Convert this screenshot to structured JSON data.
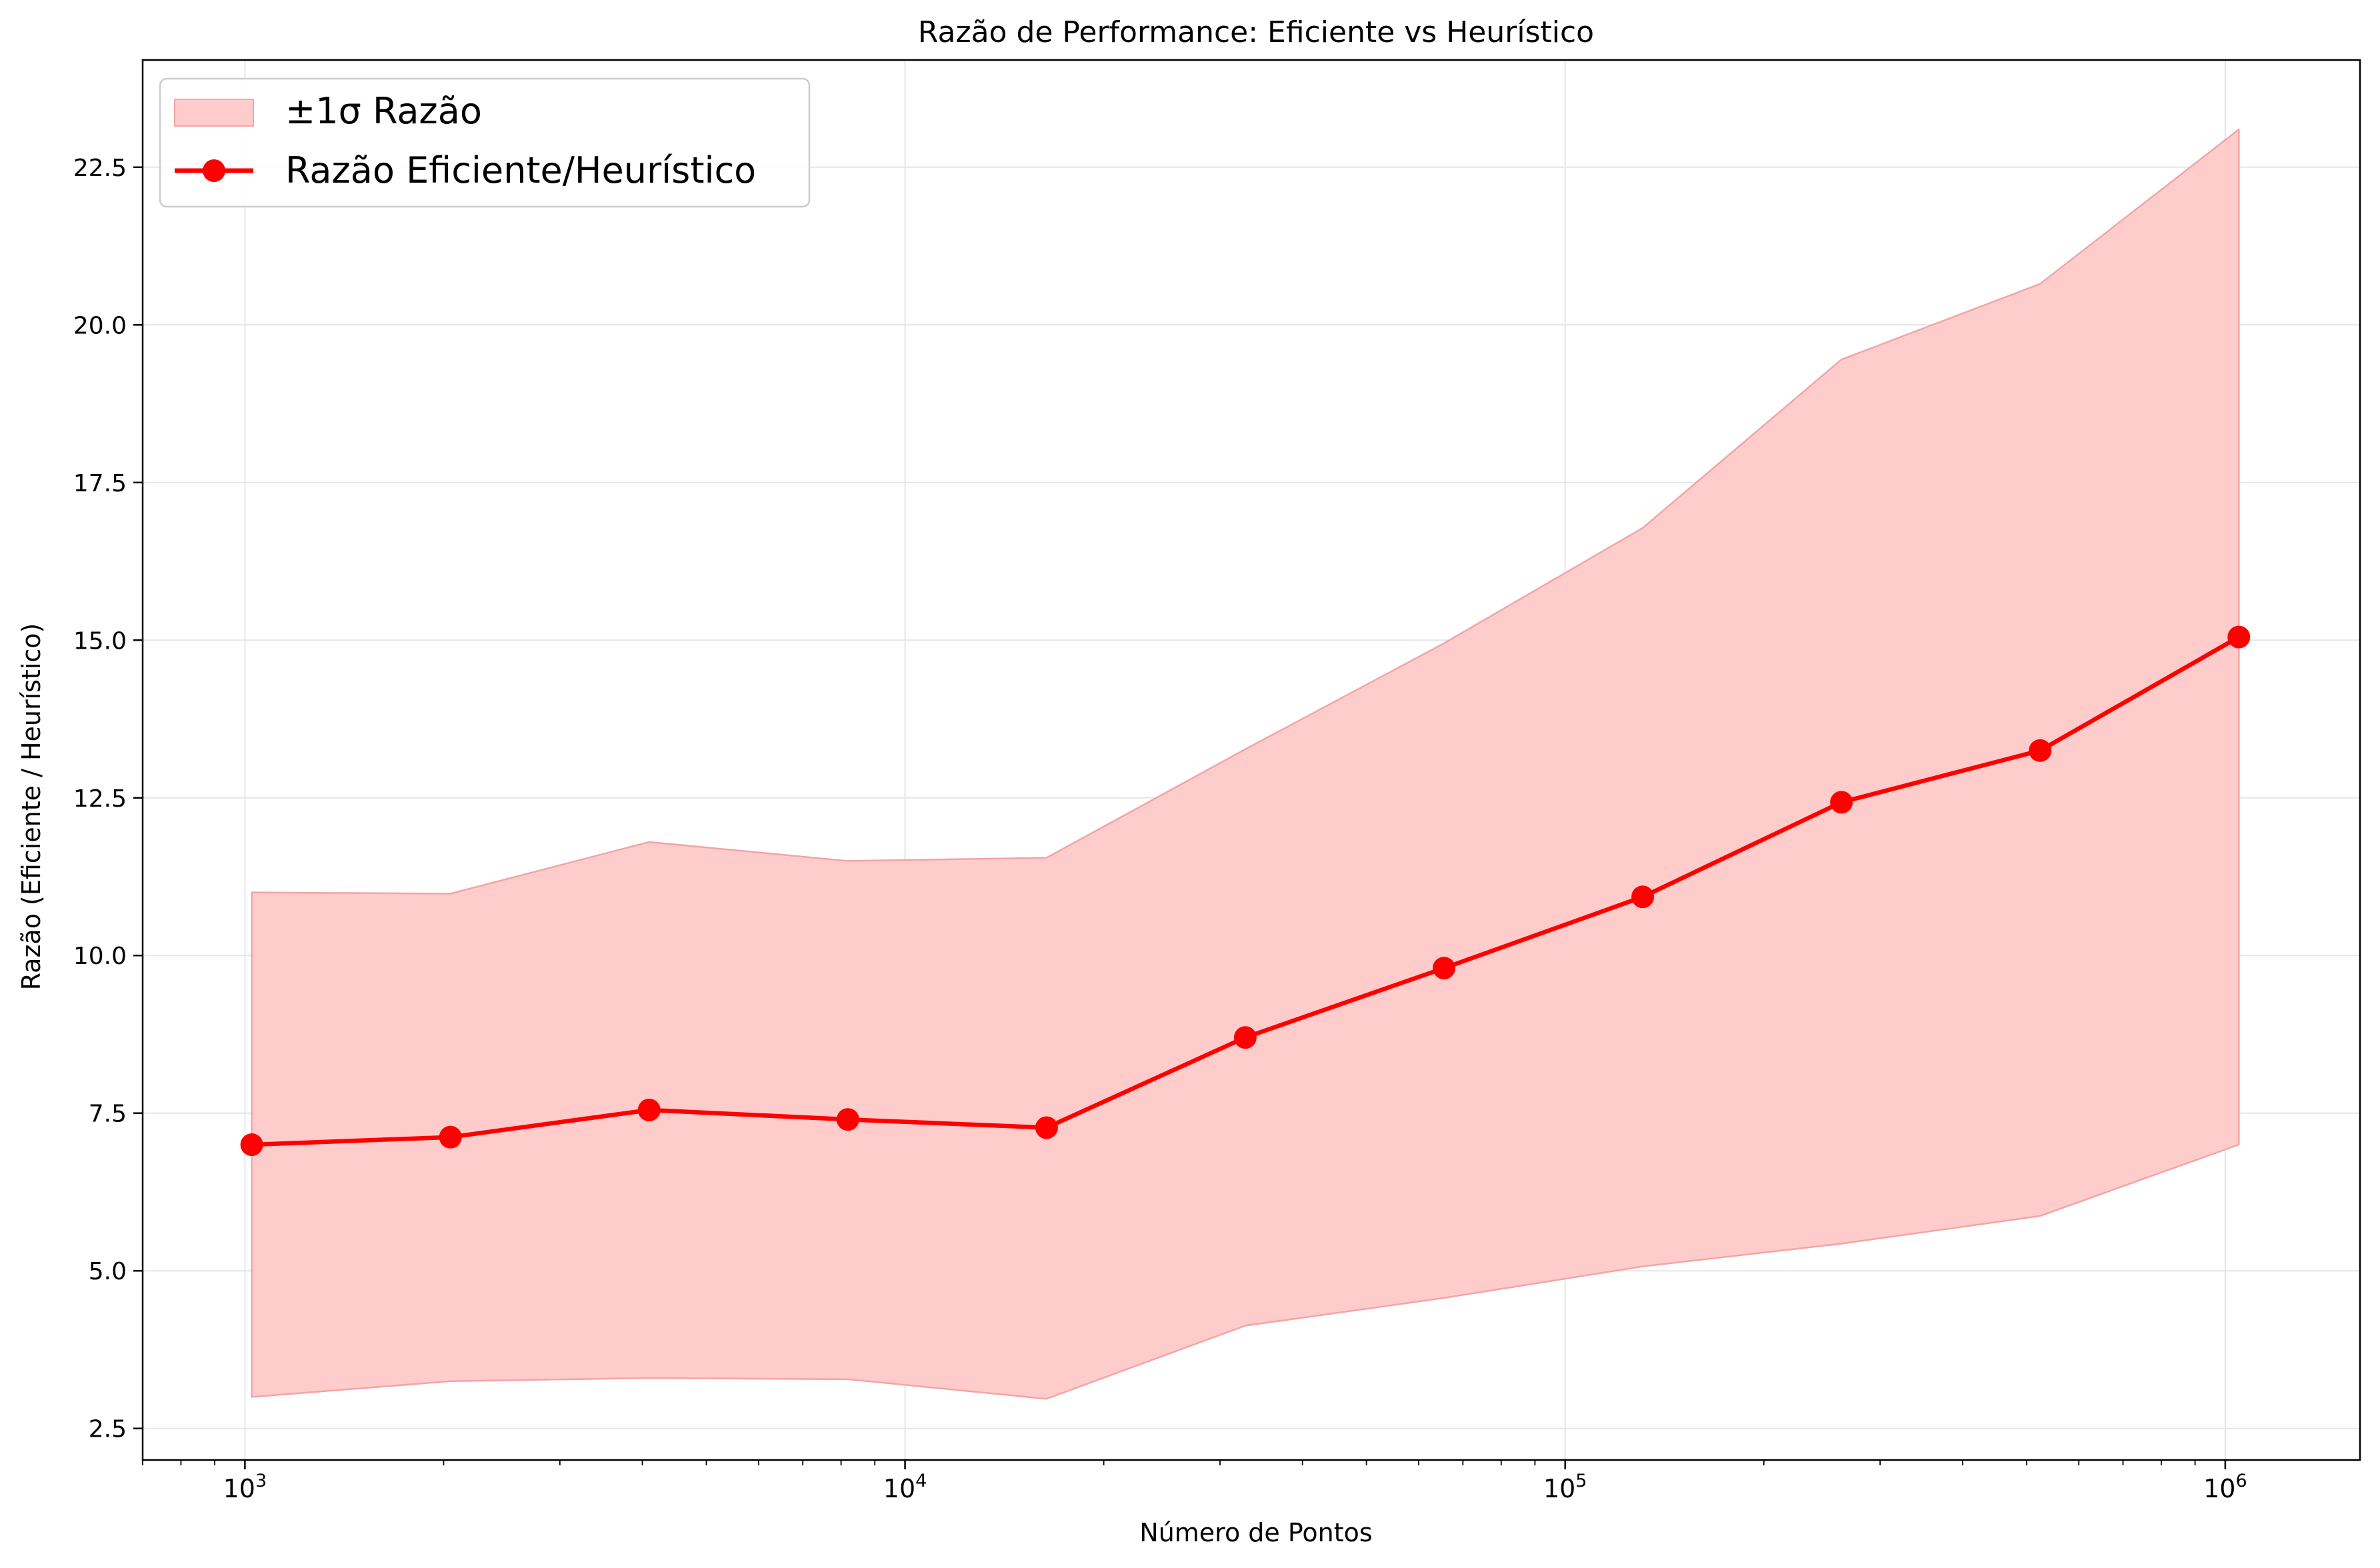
{
  "chart_data": {
    "type": "line",
    "title": "Razão de Performance: Eficiente vs Heurístico",
    "xlabel": "Número de Pontos",
    "ylabel": "Razão (Eficiente / Heurístico)",
    "xscale": "log",
    "xlim": [
      700,
      1600000
    ],
    "ylim": [
      2.0,
      24.2
    ],
    "grid": true,
    "legend_position": "top-left",
    "x": [
      1024,
      2048,
      4096,
      8192,
      16384,
      32768,
      65536,
      131072,
      262144,
      524288,
      1048576
    ],
    "series": [
      {
        "name": "Razão Eficiente/Heurístico",
        "type": "line",
        "color": "#ff0000",
        "marker": "circle",
        "values": [
          7.0,
          7.12,
          7.55,
          7.4,
          7.27,
          8.7,
          9.8,
          10.93,
          12.43,
          13.25,
          15.05
        ]
      },
      {
        "name": "±1σ Razão",
        "type": "band",
        "color": "#ffcccc",
        "edge_color": "#f4a4a4",
        "lower": [
          3.0,
          3.25,
          3.3,
          3.28,
          2.97,
          4.13,
          4.57,
          5.07,
          5.43,
          5.87,
          7.0
        ],
        "upper": [
          11.0,
          10.98,
          11.8,
          11.5,
          11.55,
          13.27,
          14.95,
          16.78,
          19.45,
          20.65,
          23.1
        ]
      }
    ],
    "yticks": [
      2.5,
      5.0,
      7.5,
      10.0,
      12.5,
      15.0,
      17.5,
      20.0,
      22.5
    ],
    "ytick_labels": [
      "2.5",
      "5.0",
      "7.5",
      "10.0",
      "12.5",
      "15.0",
      "17.5",
      "20.0",
      "22.5"
    ],
    "xticks_major": [
      1000,
      10000,
      100000,
      1000000
    ],
    "xtick_labels": [
      {
        "base": "10",
        "exp": "3"
      },
      {
        "base": "10",
        "exp": "4"
      },
      {
        "base": "10",
        "exp": "5"
      },
      {
        "base": "10",
        "exp": "6"
      }
    ]
  }
}
